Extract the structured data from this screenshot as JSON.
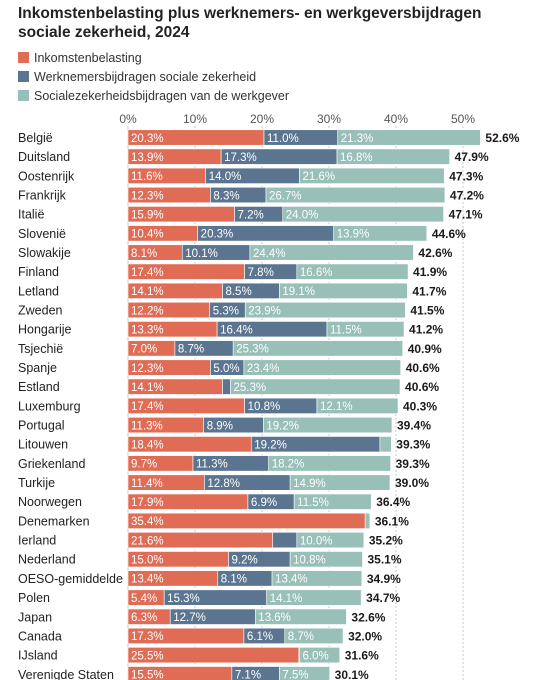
{
  "chart_data": {
    "type": "bar",
    "stacked": true,
    "orientation": "horizontal",
    "title": "Inkomstenbelasting plus werknemers- en werkgeversbijdragen sociale zekerheid, 2024",
    "xlim": [
      0,
      55
    ],
    "xticks": [
      0,
      10,
      20,
      30,
      40,
      50
    ],
    "xtick_labels": [
      "0%",
      "10%",
      "20%",
      "30%",
      "40%",
      "50%"
    ],
    "grid": true,
    "legend_position": "top-left",
    "series": [
      {
        "name": "Inkomstenbelasting",
        "color": "#e06c55",
        "values": [
          20.3,
          13.9,
          11.6,
          12.3,
          15.9,
          10.4,
          8.1,
          17.4,
          14.1,
          12.2,
          13.3,
          7.0,
          12.3,
          14.1,
          17.4,
          11.3,
          18.4,
          9.7,
          11.4,
          17.9,
          35.4,
          21.6,
          15.0,
          13.4,
          5.4,
          6.3,
          17.3,
          25.5,
          15.5
        ],
        "labels": [
          "20.3%",
          "13.9%",
          "11.6%",
          "12.3%",
          "15.9%",
          "10.4%",
          "8.1%",
          "17.4%",
          "14.1%",
          "12.2%",
          "13.3%",
          "7.0%",
          "12.3%",
          "14.1%",
          "17.4%",
          "11.3%",
          "18.4%",
          "9.7%",
          "11.4%",
          "17.9%",
          "35.4%",
          "21.6%",
          "15.0%",
          "13.4%",
          "5.4%",
          "6.3%",
          "17.3%",
          "25.5%",
          "15.5%"
        ]
      },
      {
        "name": "Werknemersbijdragen sociale zekerheid",
        "color": "#5b7590",
        "values": [
          11.0,
          17.3,
          14.0,
          8.3,
          7.2,
          20.3,
          10.1,
          7.8,
          8.5,
          5.3,
          16.4,
          8.7,
          5.0,
          1.2,
          10.8,
          8.9,
          19.2,
          11.3,
          12.8,
          6.9,
          0,
          3.6,
          9.2,
          8.1,
          15.3,
          12.7,
          6.1,
          0.1,
          7.1
        ],
        "labels": [
          "11.0%",
          "17.3%",
          "14.0%",
          "8.3%",
          "7.2%",
          "20.3%",
          "10.1%",
          "7.8%",
          "8.5%",
          "5.3%",
          "16.4%",
          "8.7%",
          "5.0%",
          "",
          "10.8%",
          "8.9%",
          "19.2%",
          "11.3%",
          "12.8%",
          "6.9%",
          "",
          "",
          "9.2%",
          "8.1%",
          "15.3%",
          "12.7%",
          "6.1%",
          "",
          "7.1%"
        ]
      },
      {
        "name": "Socialezekerheidsbijdragen van de werkgever",
        "color": "#98bfb8",
        "values": [
          21.3,
          16.8,
          21.6,
          26.7,
          24.0,
          13.9,
          24.4,
          16.6,
          19.1,
          23.9,
          11.5,
          25.3,
          23.4,
          25.3,
          12.1,
          19.2,
          1.7,
          18.2,
          14.9,
          11.5,
          0.7,
          10.0,
          10.8,
          13.4,
          14.1,
          13.6,
          8.7,
          6.0,
          7.5
        ],
        "labels": [
          "21.3%",
          "16.8%",
          "21.6%",
          "26.7%",
          "24.0%",
          "13.9%",
          "24.4%",
          "16.6%",
          "19.1%",
          "23.9%",
          "11.5%",
          "25.3%",
          "23.4%",
          "25.3%",
          "12.1%",
          "19.2%",
          "",
          "18.2%",
          "14.9%",
          "11.5%",
          "",
          "10.0%",
          "10.8%",
          "13.4%",
          "14.1%",
          "13.6%",
          "8.7%",
          "6.0%",
          "7.5%"
        ]
      }
    ],
    "categories": [
      "België",
      "Duitsland",
      "Oostenrijk",
      "Frankrijk",
      "Italië",
      "Slovenië",
      "Slowakije",
      "Finland",
      "Letland",
      "Zweden",
      "Hongarije",
      "Tsjechië",
      "Spanje",
      "Estland",
      "Luxemburg",
      "Portugal",
      "Litouwen",
      "Griekenland",
      "Turkije",
      "Noorwegen",
      "Denemarken",
      "Ierland",
      "Nederland",
      "OESO-gemiddelde",
      "Polen",
      "Japan",
      "Canada",
      "IJsland",
      "Verenigde Staten"
    ],
    "totals": [
      52.6,
      47.9,
      47.3,
      47.2,
      47.1,
      44.6,
      42.6,
      41.9,
      41.7,
      41.5,
      41.2,
      40.9,
      40.6,
      40.6,
      40.3,
      39.4,
      39.3,
      39.3,
      39.0,
      36.4,
      36.1,
      35.2,
      35.1,
      34.9,
      34.7,
      32.6,
      32.0,
      31.6,
      30.1
    ],
    "total_labels": [
      "52.6%",
      "47.9%",
      "47.3%",
      "47.2%",
      "47.1%",
      "44.6%",
      "42.6%",
      "41.9%",
      "41.7%",
      "41.5%",
      "41.2%",
      "40.9%",
      "40.6%",
      "40.6%",
      "40.3%",
      "39.4%",
      "39.3%",
      "39.3%",
      "39.0%",
      "36.4%",
      "36.1%",
      "35.2%",
      "35.1%",
      "34.9%",
      "34.7%",
      "32.6%",
      "32.0%",
      "31.6%",
      "30.1%"
    ]
  }
}
